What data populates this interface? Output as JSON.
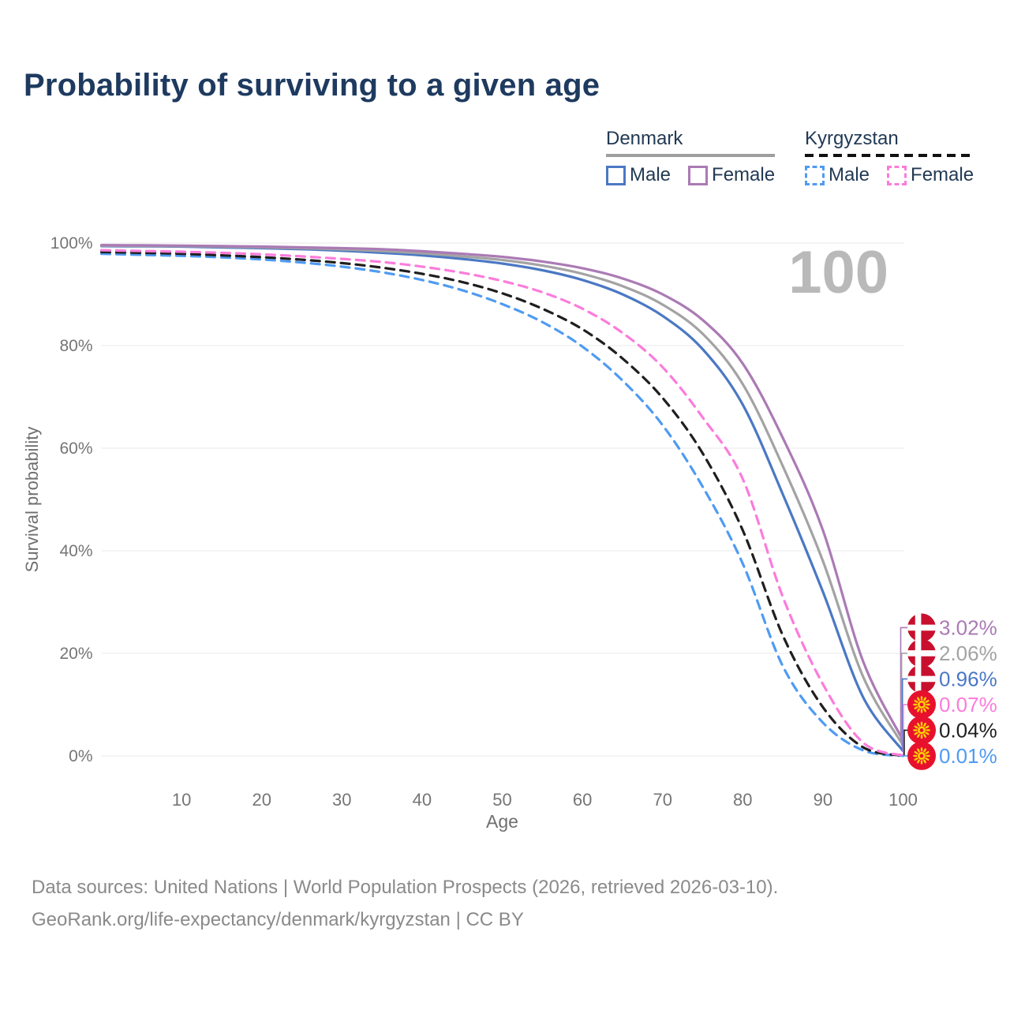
{
  "title": "Probability of surviving to a given age",
  "watermark": "100",
  "legend": {
    "denmark": {
      "label": "Denmark",
      "male_label": "Male",
      "female_label": "Female",
      "male_color": "#4b78c4",
      "female_color": "#ab7ab5",
      "underline_color": "#9e9e9e",
      "line_style": "solid"
    },
    "kyrgyzstan": {
      "label": "Kyrgyzstan",
      "male_label": "Male",
      "female_label": "Female",
      "male_color": "#4f9bf2",
      "female_color": "#fb7cdb",
      "underline_color": "#111111",
      "line_style": "dashed"
    }
  },
  "chart_data": {
    "type": "line",
    "title": "Probability of surviving to a given age",
    "xlabel": "Age",
    "ylabel": "Survival probability",
    "xlim": [
      0,
      100
    ],
    "ylim": [
      0,
      100
    ],
    "xticks": [
      10,
      20,
      30,
      40,
      50,
      60,
      70,
      80,
      90,
      100
    ],
    "yticks": [
      0,
      20,
      40,
      60,
      80,
      100
    ],
    "ytick_suffix": "%",
    "grid": "horizontal",
    "legend_position": "top-right",
    "x": [
      0,
      5,
      10,
      15,
      20,
      25,
      30,
      35,
      40,
      45,
      50,
      55,
      60,
      65,
      70,
      75,
      80,
      85,
      90,
      95,
      100
    ],
    "series": [
      {
        "id": "denmark-female",
        "name": "Denmark Female",
        "country": "Denmark",
        "sex": "Female",
        "color": "#ab7ab5",
        "dashed": false,
        "end_label": "3.02%",
        "flag": "denmark",
        "values": [
          99.6,
          99.55,
          99.5,
          99.4,
          99.3,
          99.15,
          99.0,
          98.8,
          98.4,
          97.9,
          97.3,
          96.4,
          95.1,
          93.1,
          90.0,
          85.0,
          76.5,
          62.0,
          44.0,
          18.5,
          3.02
        ]
      },
      {
        "id": "denmark-total",
        "name": "Denmark Both sexes",
        "country": "Denmark",
        "sex": "Both",
        "color": "#a3a3a3",
        "dashed": false,
        "end_label": "2.06%",
        "flag": "denmark",
        "values": [
          99.5,
          99.45,
          99.4,
          99.3,
          99.15,
          99.0,
          98.75,
          98.45,
          98.0,
          97.4,
          96.7,
          95.6,
          94.0,
          91.6,
          88.0,
          82.3,
          72.5,
          56.5,
          38.0,
          15.5,
          2.06
        ]
      },
      {
        "id": "denmark-male",
        "name": "Denmark Male",
        "country": "Denmark",
        "sex": "Male",
        "color": "#4b78c4",
        "dashed": false,
        "end_label": "0.96%",
        "flag": "denmark",
        "values": [
          99.4,
          99.35,
          99.3,
          99.15,
          99.0,
          98.8,
          98.5,
          98.1,
          97.6,
          96.9,
          96.0,
          94.7,
          92.8,
          90.0,
          85.8,
          79.3,
          68.5,
          51.0,
          32.0,
          11.5,
          0.96
        ]
      },
      {
        "id": "kyrgyzstan-female",
        "name": "Kyrgyzstan Female",
        "country": "Kyrgyzstan",
        "sex": "Female",
        "color": "#fb7cdb",
        "dashed": true,
        "end_label": "0.07%",
        "flag": "kyrgyzstan",
        "values": [
          98.6,
          98.45,
          98.3,
          98.1,
          97.8,
          97.4,
          96.9,
          96.3,
          95.4,
          94.2,
          92.6,
          90.4,
          87.2,
          82.5,
          75.8,
          66.0,
          54.0,
          31.0,
          14.0,
          2.6,
          0.07
        ]
      },
      {
        "id": "kyrgyzstan-total",
        "name": "Kyrgyzstan Both sexes",
        "country": "Kyrgyzstan",
        "sex": "Both",
        "color": "#1f1f1f",
        "dashed": true,
        "end_label": "0.04%",
        "flag": "kyrgyzstan",
        "values": [
          98.25,
          98.1,
          97.9,
          97.6,
          97.25,
          96.75,
          96.1,
          95.2,
          94.0,
          92.4,
          90.2,
          87.2,
          83.2,
          77.5,
          69.8,
          59.0,
          44.0,
          23.5,
          9.5,
          1.7,
          0.04
        ]
      },
      {
        "id": "kyrgyzstan-male",
        "name": "Kyrgyzstan Male",
        "country": "Kyrgyzstan",
        "sex": "Male",
        "color": "#4f9bf2",
        "dashed": true,
        "end_label": "0.01%",
        "flag": "kyrgyzstan",
        "values": [
          97.9,
          97.7,
          97.5,
          97.2,
          96.8,
          96.2,
          95.4,
          94.3,
          92.8,
          90.8,
          88.1,
          84.6,
          79.8,
          73.2,
          64.5,
          52.5,
          37.5,
          17.5,
          6.5,
          1.1,
          0.01
        ]
      }
    ],
    "colors": {
      "grid": "#e9e9e9",
      "tick_text": "#757575",
      "axis_title_text": "#6f6f6f",
      "watermark": "#b9b9b9",
      "denmark_flag_red": "#c8102e",
      "kyrgyzstan_flag_red": "#e8112d",
      "flag_sun_yellow": "#ffd100"
    }
  },
  "footer": {
    "line1": "Data sources: United Nations | World Population Prospects (2026, retrieved 2026-03-10).",
    "line2": "GeoRank.org/life-expectancy/denmark/kyrgyzstan | CC BY"
  }
}
